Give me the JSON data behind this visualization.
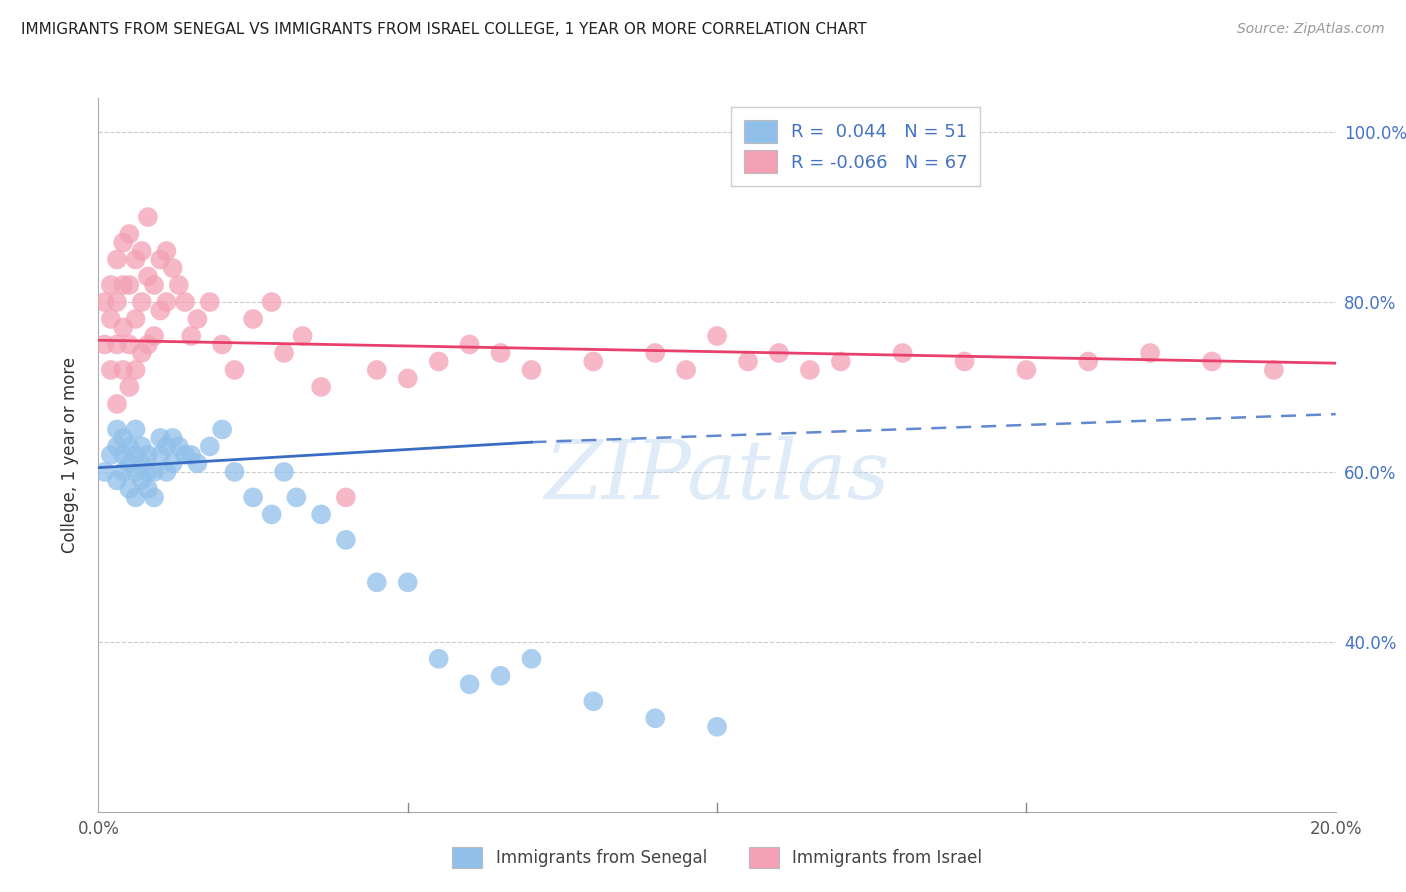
{
  "title": "IMMIGRANTS FROM SENEGAL VS IMMIGRANTS FROM ISRAEL COLLEGE, 1 YEAR OR MORE CORRELATION CHART",
  "source": "Source: ZipAtlas.com",
  "ylabel": "College, 1 year or more",
  "xlim": [
    0.0,
    0.2
  ],
  "ylim": [
    0.2,
    1.04
  ],
  "legend_r_senegal": "0.044",
  "legend_n_senegal": "51",
  "legend_r_israel": "-0.066",
  "legend_n_israel": "67",
  "blue_color": "#90C0EA",
  "pink_color": "#F4A0B5",
  "trend_blue": "#3B6CC4",
  "trend_pink": "#E8406A",
  "watermark": "ZIPatlas",
  "grid_color": "#CCCCCC",
  "background_color": "#FFFFFF",
  "senegal_x": [
    0.001,
    0.002,
    0.003,
    0.003,
    0.003,
    0.004,
    0.004,
    0.004,
    0.005,
    0.005,
    0.005,
    0.006,
    0.006,
    0.006,
    0.006,
    0.007,
    0.007,
    0.007,
    0.008,
    0.008,
    0.008,
    0.009,
    0.009,
    0.01,
    0.01,
    0.011,
    0.011,
    0.012,
    0.012,
    0.013,
    0.014,
    0.015,
    0.016,
    0.018,
    0.02,
    0.022,
    0.025,
    0.028,
    0.03,
    0.032,
    0.036,
    0.04,
    0.045,
    0.05,
    0.055,
    0.06,
    0.065,
    0.07,
    0.08,
    0.09,
    0.1
  ],
  "senegal_y": [
    0.6,
    0.62,
    0.59,
    0.63,
    0.65,
    0.6,
    0.62,
    0.64,
    0.58,
    0.61,
    0.63,
    0.57,
    0.6,
    0.62,
    0.65,
    0.59,
    0.61,
    0.63,
    0.58,
    0.6,
    0.62,
    0.57,
    0.6,
    0.62,
    0.64,
    0.6,
    0.63,
    0.61,
    0.64,
    0.63,
    0.62,
    0.62,
    0.61,
    0.63,
    0.65,
    0.6,
    0.57,
    0.55,
    0.6,
    0.57,
    0.55,
    0.52,
    0.47,
    0.47,
    0.38,
    0.35,
    0.36,
    0.38,
    0.33,
    0.31,
    0.3
  ],
  "israel_x": [
    0.001,
    0.001,
    0.002,
    0.002,
    0.002,
    0.003,
    0.003,
    0.003,
    0.003,
    0.004,
    0.004,
    0.004,
    0.004,
    0.005,
    0.005,
    0.005,
    0.005,
    0.006,
    0.006,
    0.006,
    0.007,
    0.007,
    0.007,
    0.008,
    0.008,
    0.008,
    0.009,
    0.009,
    0.01,
    0.01,
    0.011,
    0.011,
    0.012,
    0.013,
    0.014,
    0.015,
    0.016,
    0.018,
    0.02,
    0.022,
    0.025,
    0.028,
    0.03,
    0.033,
    0.036,
    0.04,
    0.045,
    0.05,
    0.055,
    0.06,
    0.065,
    0.07,
    0.08,
    0.09,
    0.095,
    0.1,
    0.105,
    0.11,
    0.115,
    0.12,
    0.13,
    0.14,
    0.15,
    0.16,
    0.17,
    0.18,
    0.19
  ],
  "israel_y": [
    0.75,
    0.8,
    0.72,
    0.78,
    0.82,
    0.68,
    0.75,
    0.8,
    0.85,
    0.72,
    0.77,
    0.82,
    0.87,
    0.7,
    0.75,
    0.82,
    0.88,
    0.72,
    0.78,
    0.85,
    0.74,
    0.8,
    0.86,
    0.75,
    0.83,
    0.9,
    0.76,
    0.82,
    0.79,
    0.85,
    0.8,
    0.86,
    0.84,
    0.82,
    0.8,
    0.76,
    0.78,
    0.8,
    0.75,
    0.72,
    0.78,
    0.8,
    0.74,
    0.76,
    0.7,
    0.57,
    0.72,
    0.71,
    0.73,
    0.75,
    0.74,
    0.72,
    0.73,
    0.74,
    0.72,
    0.76,
    0.73,
    0.74,
    0.72,
    0.73,
    0.74,
    0.73,
    0.72,
    0.73,
    0.74,
    0.73,
    0.72
  ],
  "trend_blue_x0": 0.0,
  "trend_blue_y0": 0.605,
  "trend_blue_x1": 0.07,
  "trend_blue_y1": 0.635,
  "trend_blue_dash_x0": 0.07,
  "trend_blue_dash_y0": 0.635,
  "trend_blue_dash_x1": 0.2,
  "trend_blue_dash_y1": 0.668,
  "trend_pink_x0": 0.0,
  "trend_pink_y0": 0.755,
  "trend_pink_x1": 0.2,
  "trend_pink_y1": 0.728
}
